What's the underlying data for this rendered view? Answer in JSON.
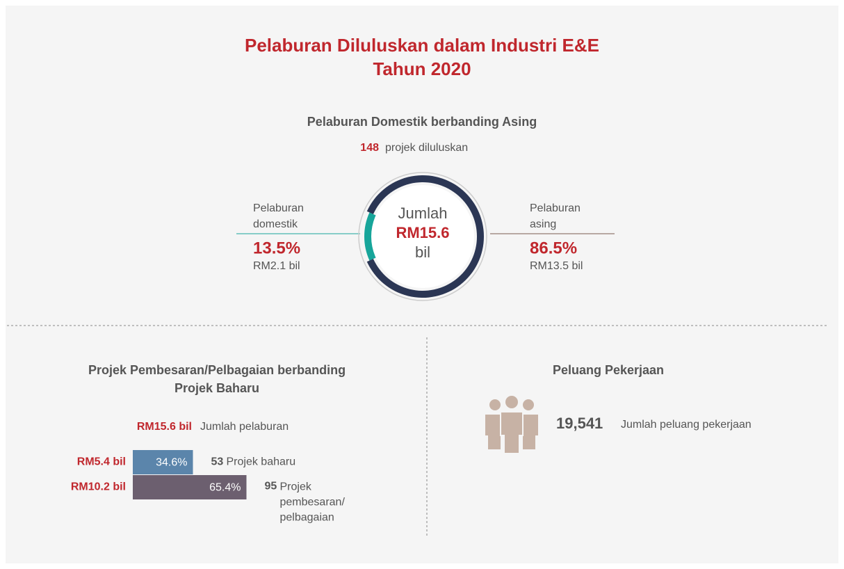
{
  "title": [
    "Pelaburan Diluluskan dalam Industri E&E",
    "Tahun 2020"
  ],
  "donut": {
    "heading": "Pelaburan Domestik berbanding Asing",
    "projects": 148,
    "projects_label": "projek diluluskan",
    "center": [
      "Jumlah",
      "RM15.6",
      "bil"
    ],
    "segments": [
      {
        "name": [
          "Pelaburan",
          "domestik"
        ],
        "value": 13.5,
        "value_label": "13.5%",
        "amount": "RM2.1 bil",
        "color": "#17a59a"
      },
      {
        "name": [
          "Pelaburan",
          "asing"
        ],
        "value": 86.5,
        "value_label": "86.5%",
        "amount": "RM13.5 bil",
        "color": "#2b3654"
      }
    ]
  },
  "bars": {
    "heading": [
      "Projek Pembesaran/Pelbagaian berbanding",
      "Projek Baharu"
    ],
    "total": "RM15.6 bil",
    "total_label": "Jumlah pelaburan",
    "items": [
      {
        "amount": "RM5.4 bil",
        "value": 34.6,
        "value_label": "34.6%",
        "count": 53,
        "label": [
          "Projek baharu"
        ],
        "color": "#5b85ab"
      },
      {
        "amount": "RM10.2 bil",
        "value": 65.4,
        "value_label": "65.4%",
        "count": 95,
        "label": [
          "Projek",
          "pembesaran/",
          "pelbagaian"
        ],
        "color": "#6c5f6f"
      }
    ]
  },
  "jobs": {
    "heading": "Peluang Pekerjaan",
    "count": "19,541",
    "label": "Jumlah peluang pekerjaan"
  }
}
